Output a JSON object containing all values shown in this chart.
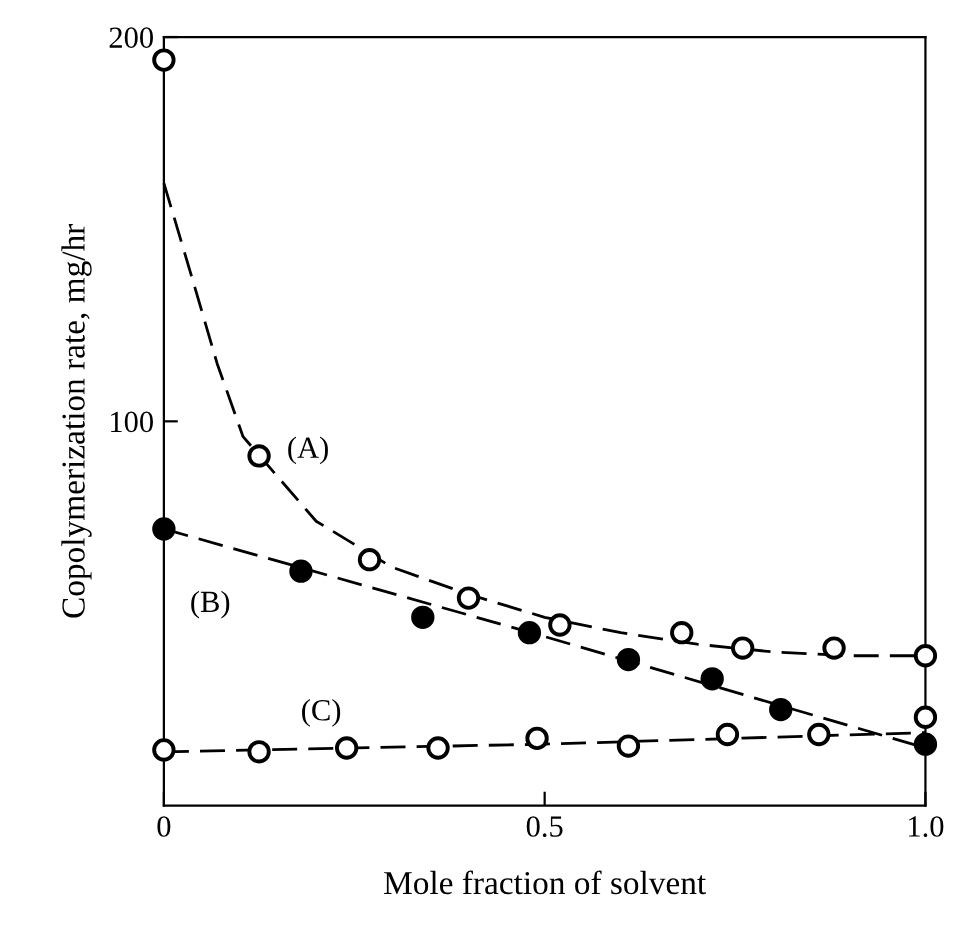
{
  "chart_data": {
    "type": "scatter",
    "xlabel": "Mole fraction of solvent",
    "ylabel": "Copolymerization rate, mg/hr",
    "xlim": [
      0,
      1.0
    ],
    "xticks": [
      0,
      0.5,
      {
        "value": 1.0,
        "label": "1.0"
      }
    ],
    "ylim": [
      0,
      200
    ],
    "yticks": [
      100,
      200
    ],
    "grid": false,
    "marker": "circle",
    "series": [
      {
        "type": "line",
        "line_style": "dashed",
        "marker": "none",
        "color": "#000000",
        "x": [
          0,
          0.036,
          0.07,
          0.104,
          0.2,
          0.3,
          0.4,
          0.5,
          0.6,
          0.7,
          0.8,
          0.9,
          1.0
        ],
        "values": [
          162,
          138,
          115,
          96,
          74,
          62,
          55,
          49,
          45,
          42,
          40,
          39,
          39
        ]
      },
      {
        "type": "line",
        "line_style": "dashed",
        "marker": "none",
        "color": "#000000",
        "x": [
          0,
          0.5,
          1.0
        ],
        "values": [
          72,
          44,
          15
        ]
      },
      {
        "type": "line",
        "line_style": "dashed",
        "marker": "none",
        "color": "#000000",
        "x": [
          0,
          0.5,
          1.0
        ],
        "values": [
          14,
          16,
          19
        ]
      },
      {
        "color": "#ffffff",
        "x": [
          0,
          0.125,
          0.27,
          0.4,
          0.52,
          0.68,
          0.76,
          0.88,
          1.0
        ],
        "values": [
          194,
          91,
          64,
          54,
          47,
          45,
          41,
          41,
          39
        ]
      },
      {
        "color": "#000000",
        "x": [
          0,
          0.18,
          0.34,
          0.48,
          0.61,
          0.72,
          0.81,
          1.0
        ],
        "values": [
          72,
          61,
          49,
          45,
          38,
          33,
          25,
          16
        ]
      },
      {
        "color": "#ffffff",
        "x": [
          0,
          0.125,
          0.24,
          0.36,
          0.49,
          0.61,
          0.74,
          0.86,
          1.0
        ],
        "values": [
          14.5,
          14,
          15,
          15,
          17.5,
          15.5,
          18.5,
          18.5,
          23
        ]
      }
    ],
    "annotations": [
      "(A)",
      "(B)",
      "(C)"
    ]
  }
}
